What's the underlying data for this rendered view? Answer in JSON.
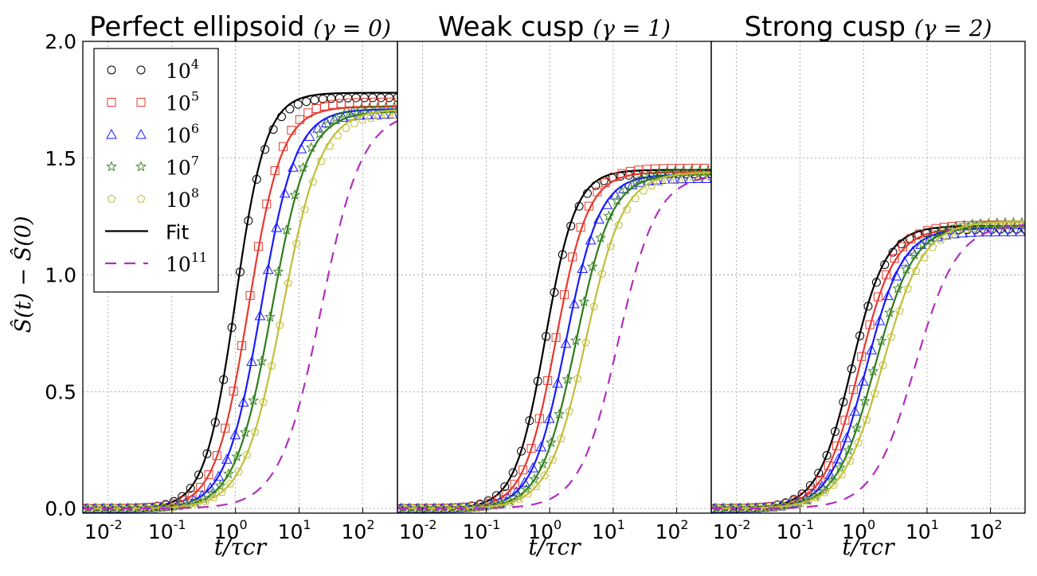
{
  "chart_data": {
    "type": "line",
    "xscale": "log",
    "xlim": [
      0.004,
      350
    ],
    "ylim": [
      -0.02,
      2.0
    ],
    "yticks": [
      "0.0",
      "0.5",
      "1.0",
      "1.5",
      "2.0"
    ],
    "xticks": [
      {
        "base": "10",
        "exp": "-2",
        "value": 0.01
      },
      {
        "base": "10",
        "exp": "-1",
        "value": 0.1
      },
      {
        "base": "10",
        "exp": "0",
        "value": 1
      },
      {
        "base": "10",
        "exp": "1",
        "value": 10
      },
      {
        "base": "10",
        "exp": "2",
        "value": 100
      }
    ],
    "ylabel": "Ŝ(t) − Ŝ(0)",
    "xlabel": "t/τcr",
    "grid": true,
    "legend": {
      "placement": "top-left",
      "entries": [
        {
          "label": "10",
          "exp": "4",
          "marker": "circle",
          "color": "#000000"
        },
        {
          "label": "10",
          "exp": "5",
          "marker": "square",
          "color": "#e8382e"
        },
        {
          "label": "10",
          "exp": "6",
          "marker": "triangle",
          "color": "#1a1aff"
        },
        {
          "label": "10",
          "exp": "7",
          "marker": "star",
          "color": "#2e7d1a"
        },
        {
          "label": "10",
          "exp": "8",
          "marker": "pentagon",
          "color": "#bfbf3a"
        },
        {
          "label": "Fit",
          "exp": "",
          "marker": "line",
          "color": "#000000"
        },
        {
          "label": "10",
          "exp": "11",
          "marker": "dashed",
          "color": "#b22fbf"
        }
      ]
    },
    "panels": [
      {
        "title": "Perfect ellipsoid",
        "title_math": "(γ = 0)",
        "series": [
          {
            "N": "10^4",
            "color": "#000000",
            "t_half": 1.0,
            "width": 0.55,
            "plateau": 1.78
          },
          {
            "N": "10^5",
            "color": "#e8382e",
            "t_half": 1.6,
            "width": 0.6,
            "plateau": 1.72
          },
          {
            "N": "10^6",
            "color": "#1a1aff",
            "t_half": 2.5,
            "width": 0.63,
            "plateau": 1.71
          },
          {
            "N": "10^7",
            "color": "#2e7d1a",
            "t_half": 3.7,
            "width": 0.66,
            "plateau": 1.7
          },
          {
            "N": "10^8",
            "color": "#bfbf3a",
            "t_half": 5.5,
            "width": 0.7,
            "plateau": 1.71
          },
          {
            "N": "10^11",
            "color": "#b22fbf",
            "t_half": 22,
            "width": 0.75,
            "plateau": 1.7,
            "dashed": true
          }
        ]
      },
      {
        "title": "Weak cusp",
        "title_math": "(γ = 1)",
        "series": [
          {
            "N": "10^4",
            "color": "#000000",
            "t_half": 0.85,
            "width": 0.55,
            "plateau": 1.45
          },
          {
            "N": "10^5",
            "color": "#e8382e",
            "t_half": 1.25,
            "width": 0.58,
            "plateau": 1.44
          },
          {
            "N": "10^6",
            "color": "#1a1aff",
            "t_half": 1.8,
            "width": 0.61,
            "plateau": 1.43
          },
          {
            "N": "10^7",
            "color": "#2e7d1a",
            "t_half": 2.6,
            "width": 0.64,
            "plateau": 1.43
          },
          {
            "N": "10^8",
            "color": "#bfbf3a",
            "t_half": 3.7,
            "width": 0.68,
            "plateau": 1.44
          },
          {
            "N": "10^11",
            "color": "#b22fbf",
            "t_half": 12,
            "width": 0.7,
            "plateau": 1.43,
            "dashed": true
          }
        ]
      },
      {
        "title": "Strong cusp",
        "title_math": "(γ = 2)",
        "series": [
          {
            "N": "10^4",
            "color": "#000000",
            "t_half": 0.65,
            "width": 0.62,
            "plateau": 1.21
          },
          {
            "N": "10^5",
            "color": "#e8382e",
            "t_half": 0.85,
            "width": 0.64,
            "plateau": 1.2
          },
          {
            "N": "10^6",
            "color": "#1a1aff",
            "t_half": 1.1,
            "width": 0.66,
            "plateau": 1.2
          },
          {
            "N": "10^7",
            "color": "#2e7d1a",
            "t_half": 1.5,
            "width": 0.7,
            "plateau": 1.21
          },
          {
            "N": "10^8",
            "color": "#bfbf3a",
            "t_half": 2.0,
            "width": 0.74,
            "plateau": 1.23
          },
          {
            "N": "10^11",
            "color": "#b22fbf",
            "t_half": 6.5,
            "width": 0.76,
            "plateau": 1.22,
            "dashed": true
          }
        ]
      }
    ]
  }
}
